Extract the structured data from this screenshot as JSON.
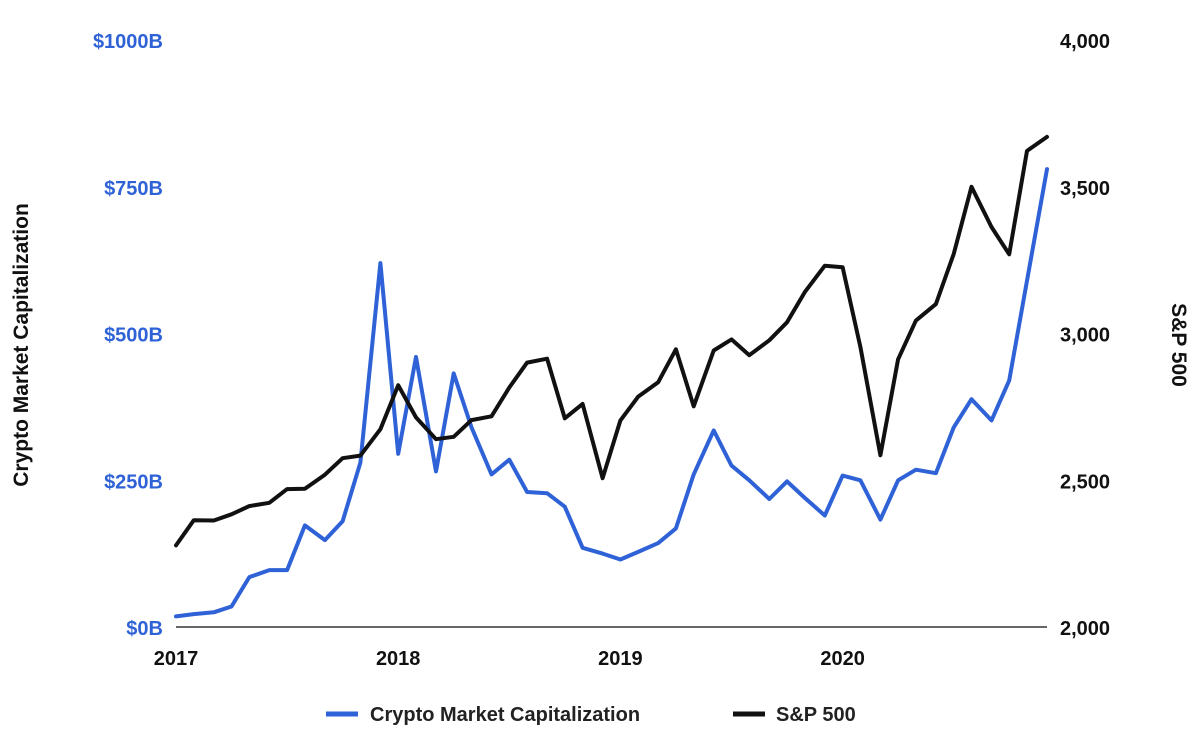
{
  "chart_data": {
    "type": "line",
    "x_ticks": [
      "2017",
      "2018",
      "2019",
      "2020"
    ],
    "y_left": {
      "label": "Crypto Market Capitalization",
      "range": [
        0,
        1000
      ],
      "ticks": [
        0,
        250,
        500,
        750,
        1000
      ],
      "tick_labels": [
        "$0B",
        "$250B",
        "$500B",
        "$750B",
        "$1000B"
      ],
      "color": "#2e62d6"
    },
    "y_right": {
      "label": "S&P 500",
      "range": [
        2000,
        4000
      ],
      "ticks": [
        2000,
        2500,
        3000,
        3500,
        4000
      ],
      "tick_labels": [
        "2,000",
        "2,500",
        "3,000",
        "3,500",
        "4,000"
      ],
      "color": "#111111"
    },
    "x_range": [
      2017.0,
      2020.92
    ],
    "x": [
      2017.0,
      2017.08,
      2017.17,
      2017.25,
      2017.33,
      2017.42,
      2017.5,
      2017.58,
      2017.67,
      2017.75,
      2017.83,
      2017.92,
      2018.0,
      2018.08,
      2018.17,
      2018.25,
      2018.33,
      2018.42,
      2018.5,
      2018.58,
      2018.67,
      2018.75,
      2018.83,
      2018.92,
      2019.0,
      2019.08,
      2019.17,
      2019.25,
      2019.33,
      2019.42,
      2019.5,
      2019.58,
      2019.67,
      2019.75,
      2019.83,
      2019.92,
      2020.0,
      2020.08,
      2020.17,
      2020.25,
      2020.33,
      2020.42,
      2020.5,
      2020.58,
      2020.67,
      2020.75,
      2020.83,
      2020.92
    ],
    "series": [
      {
        "name": "Crypto Market Capitalization",
        "axis": "left",
        "color": "#2e62d6",
        "values": [
          18,
          22,
          25,
          35,
          85,
          97,
          97,
          173,
          148,
          180,
          280,
          620,
          295,
          460,
          265,
          432,
          340,
          260,
          285,
          230,
          228,
          205,
          135,
          125,
          115,
          128,
          143,
          168,
          260,
          335,
          275,
          250,
          218,
          248,
          220,
          190,
          258,
          250,
          183,
          250,
          268,
          262,
          340,
          388,
          352,
          420,
          590,
          780
        ]
      },
      {
        "name": "S&P 500",
        "axis": "right",
        "color": "#111111",
        "values": [
          2278,
          2364,
          2363,
          2384,
          2412,
          2423,
          2470,
          2471,
          2519,
          2575,
          2584,
          2674,
          2824,
          2714,
          2640,
          2648,
          2705,
          2718,
          2816,
          2901,
          2914,
          2711,
          2760,
          2507,
          2704,
          2785,
          2834,
          2946,
          2752,
          2942,
          2980,
          2926,
          2977,
          3038,
          3141,
          3231,
          3226,
          2954,
          2585,
          2912,
          3044,
          3100,
          3271,
          3500,
          3363,
          3270,
          3622,
          3670
        ]
      }
    ],
    "legend": [
      {
        "label": "Crypto Market Capitalization",
        "color": "#2e62d6"
      },
      {
        "label": "S&P 500",
        "color": "#111111"
      }
    ],
    "legend_position": "bottom-center",
    "grid": false
  }
}
